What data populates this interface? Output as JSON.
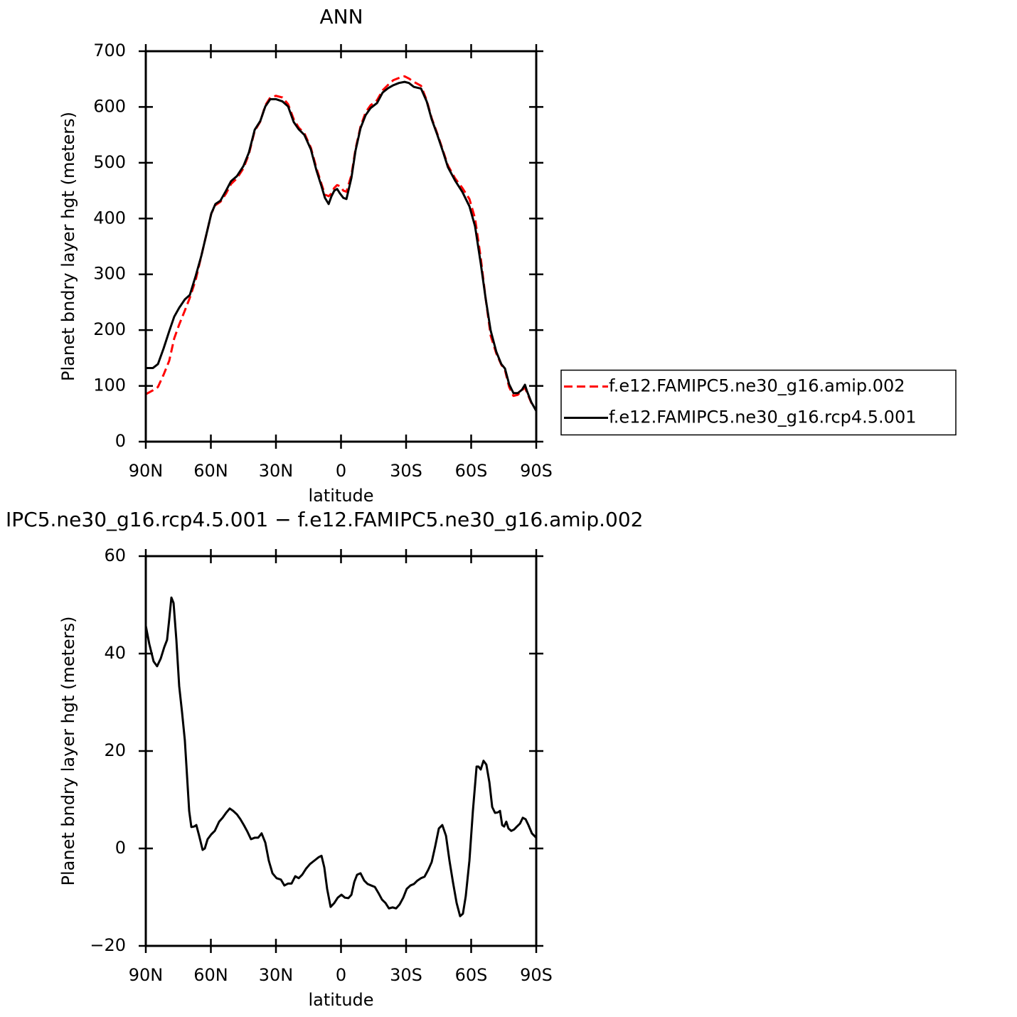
{
  "chart_data": [
    {
      "type": "line",
      "title": "ANN",
      "xlabel": "latitude",
      "ylabel": "Planet bndry layer hgt (meters)",
      "x": [
        90,
        86.7,
        84.4,
        81.8,
        79.2,
        76.9,
        74.6,
        72,
        69.7,
        67,
        64.4,
        62.1,
        59.8,
        57.9,
        55.6,
        53,
        50.7,
        48,
        45,
        42.5,
        39.8,
        37.2,
        34.9,
        32.6,
        30,
        27,
        24.4,
        21.8,
        19.5,
        16.9,
        13.9,
        11.3,
        9,
        7.4,
        5.7,
        4.4,
        3.1,
        1.8,
        0.5,
        -1.1,
        -2.5,
        -4.8,
        -6.7,
        -9,
        -11.3,
        -13.6,
        -16.6,
        -19.2,
        -21.8,
        -24.1,
        -26.7,
        -29.3,
        -31.3,
        -33.6,
        -36.9,
        -39.5,
        -41.8,
        -44.4,
        -47,
        -49.3,
        -52.6,
        -55.9,
        -59.2,
        -61.8,
        -64.4,
        -66.7,
        -69,
        -71.6,
        -73.9,
        -75.6,
        -77.5,
        -79.5,
        -81.5,
        -83.4,
        -84.8,
        -85.7,
        -87.7,
        -90
      ],
      "series": [
        {
          "name": "f.e12.FAMIPC5.ne30_g16.amip.002",
          "color": "#ff0000",
          "style": "dashed",
          "values": [
            85,
            92,
            98,
            120,
            145,
            185,
            210,
            235,
            258,
            290,
            333,
            371,
            409,
            424,
            430,
            445,
            462,
            472,
            490,
            515,
            557,
            574,
            603,
            617,
            620,
            617,
            605,
            578,
            563,
            553,
            527,
            490,
            462,
            443,
            440,
            445,
            455,
            460,
            458,
            450,
            448,
            478,
            525,
            565,
            590,
            603,
            612,
            630,
            640,
            648,
            652,
            655,
            651,
            645,
            638,
            612,
            580,
            552,
            522,
            495,
            472,
            455,
            435,
            400,
            330,
            256,
            190,
            158,
            138,
            128,
            98,
            82,
            84,
            92,
            97,
            88,
            70,
            57
          ]
        },
        {
          "name": "f.e12.FAMIPC5.ne30_g16.rcp4.5.001",
          "color": "#000000",
          "style": "solid",
          "values": [
            132,
            132,
            139,
            167,
            198,
            224,
            240,
            255,
            263,
            297,
            333,
            371,
            409,
            426,
            432,
            450,
            467,
            476,
            494,
            518,
            559,
            575,
            601,
            614,
            614,
            610,
            601,
            573,
            560,
            550,
            524,
            486,
            458,
            437,
            426,
            440,
            450,
            453,
            445,
            437,
            435,
            473,
            522,
            562,
            585,
            598,
            607,
            626,
            634,
            639,
            643,
            645,
            643,
            636,
            633,
            610,
            578,
            550,
            520,
            492,
            468,
            448,
            422,
            386,
            320,
            256,
            199,
            161,
            139,
            131,
            103,
            87,
            87,
            93,
            102,
            91,
            71,
            55
          ]
        }
      ],
      "xlim": [
        90,
        -90
      ],
      "xticks": [
        {
          "value": 90,
          "label": "90N"
        },
        {
          "value": 60,
          "label": "60N"
        },
        {
          "value": 30,
          "label": "30N"
        },
        0,
        {
          "value": -30,
          "label": "30S"
        },
        {
          "value": -60,
          "label": "60S"
        },
        {
          "value": -90,
          "label": "90S"
        }
      ],
      "ylim": [
        0,
        700
      ],
      "yticks": [
        0,
        100,
        200,
        300,
        400,
        500,
        600,
        700
      ],
      "legend": "outside-right"
    },
    {
      "type": "line",
      "title": "IPC5.ne30_g16.rcp4.5.001 − f.e12.FAMIPC5.ne30_g16.amip.002",
      "xlabel": "latitude",
      "ylabel": "Planet bndry layer hgt (meters)",
      "x": [
        90,
        88.4,
        86.4,
        84.8,
        83.1,
        81.5,
        80.2,
        79.2,
        78.2,
        77.2,
        75.9,
        74.6,
        73.3,
        72,
        71,
        70,
        69,
        67.7,
        66.7,
        65.4,
        63.8,
        62.8,
        61.5,
        59.8,
        58.2,
        56.2,
        54.6,
        53,
        51.3,
        49.7,
        48,
        46.4,
        44.8,
        43.1,
        41.5,
        39.8,
        38.2,
        36.6,
        34.9,
        33.3,
        31.6,
        29.7,
        27.7,
        26.1,
        24.4,
        22.8,
        21.1,
        19.5,
        17.9,
        16.2,
        14.3,
        12.3,
        10.3,
        9,
        7.7,
        6.4,
        4.8,
        3.1,
        1.5,
        -0.2,
        -1.8,
        -3.4,
        -4.8,
        -6.1,
        -7.4,
        -9,
        -10.7,
        -12.3,
        -13.9,
        -15.6,
        -17.2,
        -18.9,
        -20.5,
        -22.1,
        -23.8,
        -25.4,
        -27,
        -28.7,
        -30.3,
        -32,
        -33.6,
        -35.2,
        -36.9,
        -38.5,
        -40.2,
        -41.8,
        -43.4,
        -45.1,
        -46.7,
        -48.4,
        -50,
        -51.6,
        -53.3,
        -54.9,
        -56.2,
        -57.5,
        -59.2,
        -60.8,
        -62.5,
        -63.4,
        -64.4,
        -65.7,
        -67,
        -68.4,
        -69.7,
        -71,
        -72.3,
        -73.3,
        -74.3,
        -75.2,
        -76.2,
        -77.2,
        -78.5,
        -79.8,
        -81.1,
        -82.5,
        -83.8,
        -85.1,
        -86.4,
        -88,
        -90
      ],
      "values": [
        45.7,
        42,
        38.4,
        37.4,
        39,
        41.3,
        42.8,
        47,
        51.5,
        50.4,
        42.8,
        33.3,
        28,
        22.2,
        15,
        7.7,
        4.4,
        4.5,
        4.8,
        2.6,
        -0.3,
        0,
        1.9,
        2.9,
        3.6,
        5.5,
        6.3,
        7.3,
        8.2,
        7.7,
        7,
        6,
        4.8,
        3.4,
        1.9,
        2.2,
        2.2,
        3.1,
        1.2,
        -2.5,
        -5.1,
        -6.1,
        -6.4,
        -7.6,
        -7.2,
        -7.2,
        -5.7,
        -6.1,
        -5.4,
        -4.2,
        -3.2,
        -2.5,
        -1.8,
        -1.5,
        -3.9,
        -8.3,
        -12,
        -11.2,
        -10.1,
        -9.5,
        -10.1,
        -10.2,
        -9.5,
        -6.9,
        -5.4,
        -5.1,
        -6.6,
        -7.3,
        -7.6,
        -7.9,
        -9.1,
        -10.5,
        -11.2,
        -12.3,
        -12.1,
        -12.3,
        -11.5,
        -10.1,
        -8.3,
        -7.6,
        -7.3,
        -6.6,
        -6.1,
        -5.8,
        -4.4,
        -2.8,
        0.4,
        4.1,
        4.8,
        2.6,
        -2.5,
        -6.9,
        -11.2,
        -13.9,
        -13.4,
        -9.8,
        -2.5,
        7.7,
        16.8,
        16.8,
        16.2,
        18,
        17.2,
        13.6,
        8.5,
        7.3,
        7.4,
        7.7,
        4.8,
        4.5,
        5.5,
        4.1,
        3.6,
        3.9,
        4.5,
        5.1,
        6.3,
        6,
        4.8,
        3.1,
        2.2
      ],
      "color": "#000000",
      "xlim": [
        90,
        -90
      ],
      "xticks": [
        {
          "value": 90,
          "label": "90N"
        },
        {
          "value": 60,
          "label": "60N"
        },
        {
          "value": 30,
          "label": "30N"
        },
        0,
        {
          "value": -30,
          "label": "30S"
        },
        {
          "value": -60,
          "label": "60S"
        },
        {
          "value": -90,
          "label": "90S"
        }
      ],
      "ylim": [
        -20,
        60
      ],
      "yticks": [
        {
          "value": -20,
          "label": "−20"
        },
        0,
        20,
        40,
        60
      ]
    }
  ]
}
